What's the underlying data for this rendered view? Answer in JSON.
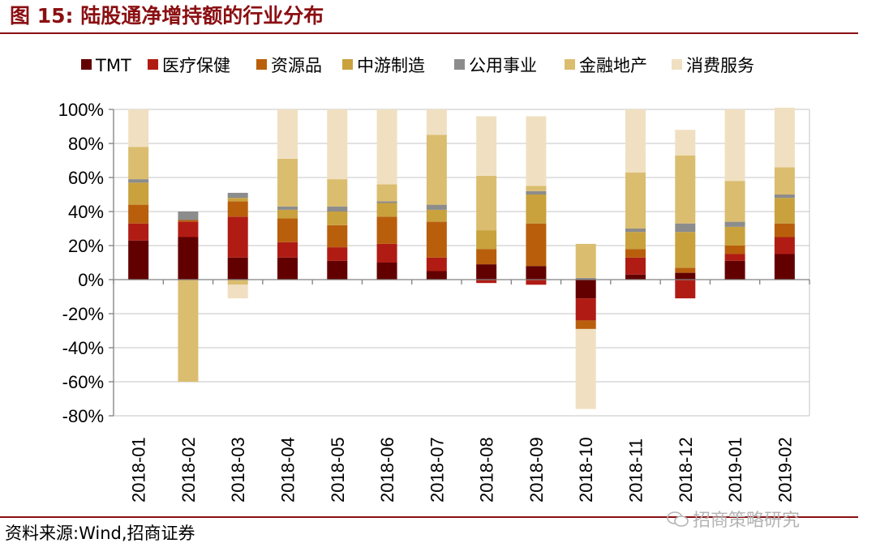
{
  "figure_title": "图 15:  陆股通净增持额的行业分布",
  "source_note": "资料来源:Wind,招商证券",
  "watermark": "招商策略研究",
  "colors": {
    "accent": "#8b0f12",
    "TMT": "#620000",
    "医疗保健": "#b01c14",
    "资源品": "#b95f0c",
    "中游制造": "#c9a23e",
    "公用事业": "#8c8c8c",
    "金融地产": "#dbbd6f",
    "消费服务": "#f0e0c1"
  },
  "chart_data": {
    "type": "bar",
    "stacked": true,
    "title": "",
    "xlabel": "",
    "ylabel": "",
    "ylim": [
      -80,
      100
    ],
    "yticks": [
      100,
      80,
      60,
      40,
      20,
      0,
      -20,
      -40,
      -60,
      -80
    ],
    "ytick_labels": [
      "100%",
      "80%",
      "60%",
      "40%",
      "20%",
      "0%",
      "-20%",
      "-40%",
      "-60%",
      "-80%"
    ],
    "grid": true,
    "legend_position": "top",
    "categories": [
      "2018-01",
      "2018-02",
      "2018-03",
      "2018-04",
      "2018-05",
      "2018-06",
      "2018-07",
      "2018-08",
      "2018-09",
      "2018-10",
      "2018-11",
      "2018-12",
      "2019-01",
      "2019-02"
    ],
    "series": [
      {
        "name": "TMT",
        "values": [
          23,
          25,
          13,
          13,
          11,
          10,
          5,
          9,
          8,
          -11,
          3,
          4,
          11,
          15
        ]
      },
      {
        "name": "医疗保健",
        "values": [
          10,
          9,
          24,
          9,
          8,
          11,
          8,
          -2,
          -3,
          -13,
          10,
          -11,
          4,
          10
        ]
      },
      {
        "name": "资源品",
        "values": [
          11,
          1,
          9,
          14,
          13,
          16,
          21,
          9,
          25,
          -5,
          5,
          3,
          5,
          8
        ]
      },
      {
        "name": "中游制造",
        "values": [
          13,
          0,
          2,
          5,
          8,
          8,
          7,
          11,
          17,
          0,
          10,
          21,
          11,
          15
        ]
      },
      {
        "name": "公用事业",
        "values": [
          2,
          5,
          3,
          2,
          3,
          1,
          3,
          0,
          2,
          1,
          2,
          5,
          3,
          2
        ]
      },
      {
        "name": "金融地产",
        "values": [
          19,
          -60,
          -3,
          28,
          16,
          10,
          41,
          32,
          3,
          20,
          33,
          40,
          24,
          16
        ]
      },
      {
        "name": "消费服务",
        "values": [
          22,
          0,
          -8,
          29,
          41,
          44,
          15,
          35,
          41,
          -47,
          37,
          15,
          42,
          35
        ]
      }
    ]
  }
}
